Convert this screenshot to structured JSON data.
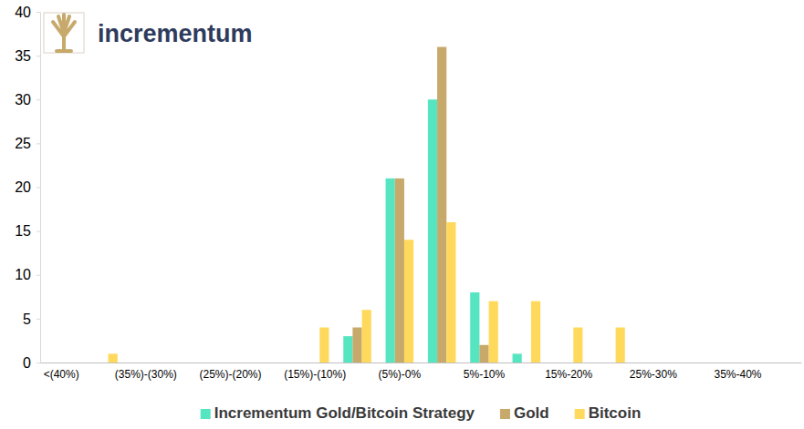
{
  "logo": "incrementum",
  "chart_data": {
    "type": "bar",
    "categories": [
      "<(40%)",
      null,
      "(35%)-(30%)",
      null,
      "(25%)-(20%)",
      null,
      "(15%)-(10%)",
      null,
      "(5%)-0%",
      null,
      "5%-10%",
      null,
      "15%-20%",
      null,
      "25%-30%",
      null,
      "35%-40%",
      null
    ],
    "series": [
      {
        "name": "Incrementum Gold/Bitcoin Strategy",
        "color": "#55e6c1",
        "values": [
          0,
          0,
          0,
          0,
          0,
          0,
          0,
          3,
          21,
          30,
          8,
          1,
          0,
          0,
          0,
          0,
          0,
          0
        ]
      },
      {
        "name": "Gold",
        "color": "#c7a96b",
        "values": [
          0,
          0,
          0,
          0,
          0,
          0,
          0,
          4,
          21,
          36,
          2,
          0,
          0,
          0,
          0,
          0,
          0,
          0
        ]
      },
      {
        "name": "Bitcoin",
        "color": "#ffd95c",
        "values": [
          0,
          1,
          0,
          0,
          0,
          0,
          4,
          6,
          14,
          16,
          7,
          7,
          4,
          4,
          0,
          0,
          0,
          0
        ]
      }
    ],
    "ylim": [
      0,
      40
    ],
    "yticks": [
      0,
      5,
      10,
      15,
      20,
      25,
      30,
      35,
      40
    ],
    "grid": false,
    "legend": "bottom"
  }
}
